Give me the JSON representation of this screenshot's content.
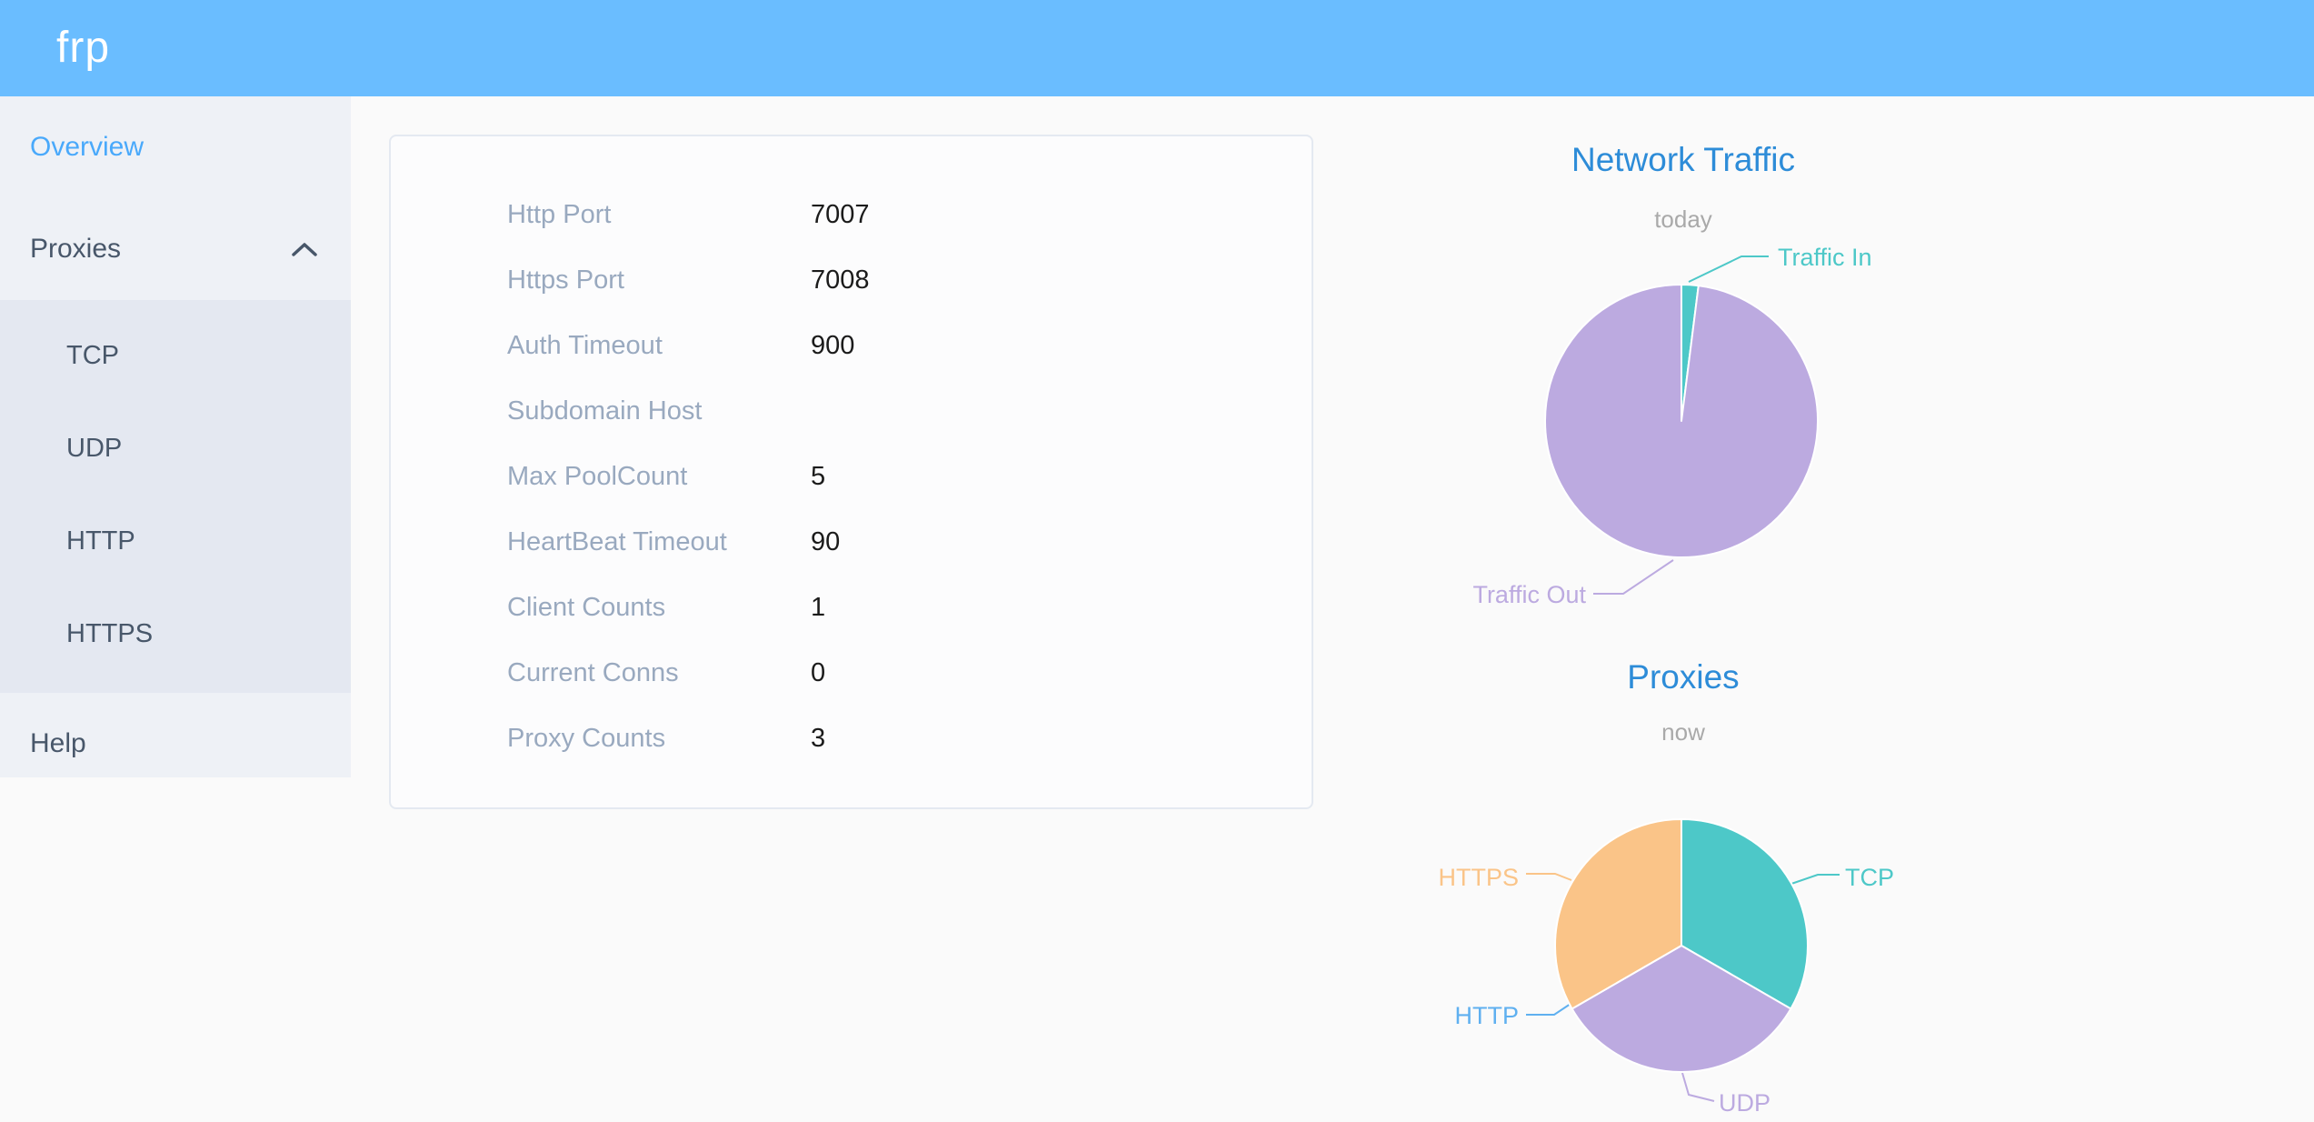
{
  "header": {
    "brand": "frp"
  },
  "sidebar": {
    "items": [
      {
        "label": "Overview",
        "active": true
      },
      {
        "label": "Proxies",
        "expanded": true
      }
    ],
    "submenu": [
      "TCP",
      "UDP",
      "HTTP",
      "HTTPS"
    ],
    "help_label": "Help"
  },
  "overview_card": {
    "rows": [
      {
        "label": "Http Port",
        "value": "7007"
      },
      {
        "label": "Https Port",
        "value": "7008"
      },
      {
        "label": "Auth Timeout",
        "value": "900"
      },
      {
        "label": "Subdomain Host",
        "value": ""
      },
      {
        "label": "Max PoolCount",
        "value": "5"
      },
      {
        "label": "HeartBeat Timeout",
        "value": "90"
      },
      {
        "label": "Client Counts",
        "value": "1"
      },
      {
        "label": "Current Conns",
        "value": "0"
      },
      {
        "label": "Proxy Counts",
        "value": "3"
      }
    ]
  },
  "colors": {
    "header_bg": "#6abdff",
    "sidebar_bg": "#eef1f6",
    "submenu_bg": "#e4e8f1",
    "sidebar_text": "#48576a",
    "active_menu_item": "#49a9fb",
    "chart_title": "#2d8cd8",
    "card_label": "#99a9bf"
  },
  "chart_data": [
    {
      "type": "pie",
      "title": "Network Traffic",
      "subtitle": "today",
      "values_are": "estimated_percent_share",
      "series": [
        {
          "name": "Traffic In",
          "value": 2,
          "color": "#4dc8c8"
        },
        {
          "name": "Traffic Out",
          "value": 98,
          "color": "#bcaae0"
        }
      ]
    },
    {
      "type": "pie",
      "title": "Proxies",
      "subtitle": "now",
      "values_are": "proxy_counts",
      "series": [
        {
          "name": "TCP",
          "value": 1,
          "color": "#4dc8c8"
        },
        {
          "name": "UDP",
          "value": 1,
          "color": "#bcaae0"
        },
        {
          "name": "HTTP",
          "value": 0,
          "color": "#5fb0f0"
        },
        {
          "name": "HTTPS",
          "value": 1,
          "color": "#fac488"
        }
      ]
    }
  ]
}
